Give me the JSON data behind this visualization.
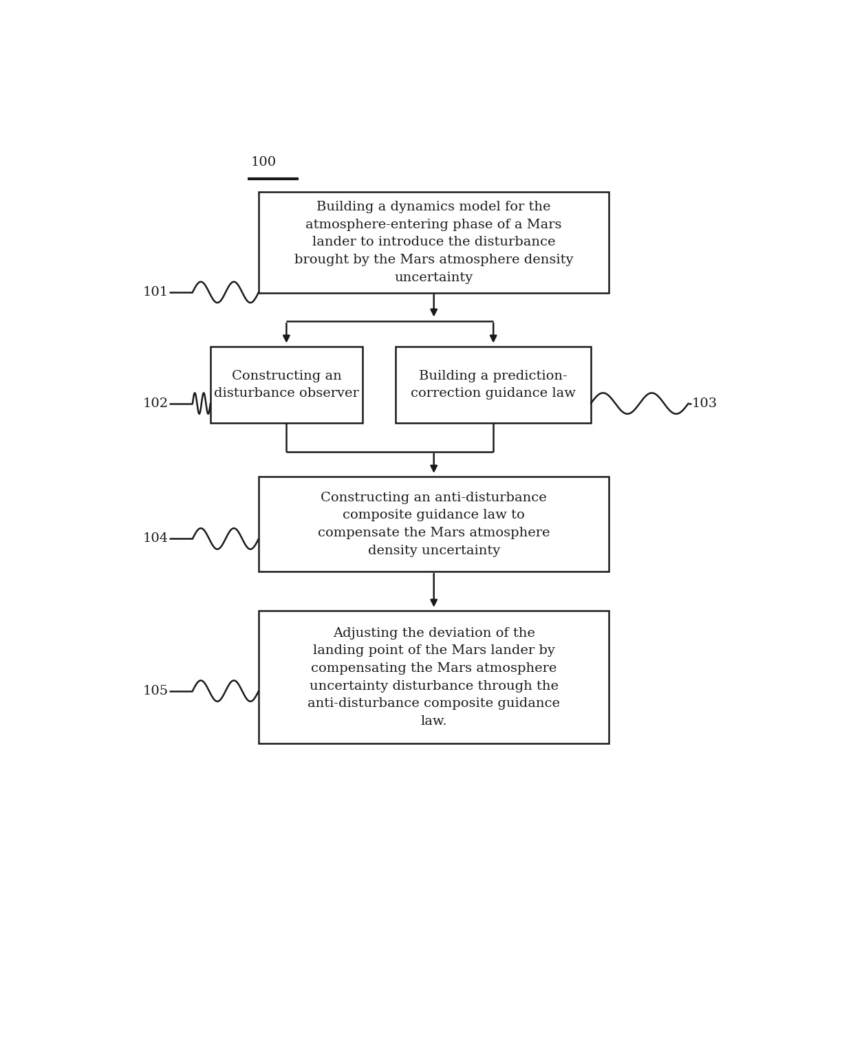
{
  "bg_color": "#ffffff",
  "line_color": "#1a1a1a",
  "text_color": "#1a1a1a",
  "fig_width": 12.4,
  "fig_height": 15.21,
  "label_100": "100",
  "label_101": "101",
  "label_102": "102",
  "label_103": "103",
  "label_104": "104",
  "label_105": "105",
  "box1_text": "Building a dynamics model for the\natmosphere-entering phase of a Mars\nlander to introduce the disturbance\nbrought by the Mars atmosphere density\nuncertainty",
  "box2_text": "Constructing an\ndisturbance observer",
  "box3_text": "Building a prediction-\ncorrection guidance law",
  "box4_text": "Constructing an anti-disturbance\ncomposite guidance law to\ncompensate the Mars atmosphere\ndensity uncertainty",
  "box5_text": "Adjusting the deviation of the\nlanding point of the Mars lander by\ncompensating the Mars atmosphere\nuncertainty disturbance through the\nanti-disturbance composite guidance\nlaw.",
  "font_size_boxes": 14,
  "font_size_labels": 14,
  "lw": 1.8
}
